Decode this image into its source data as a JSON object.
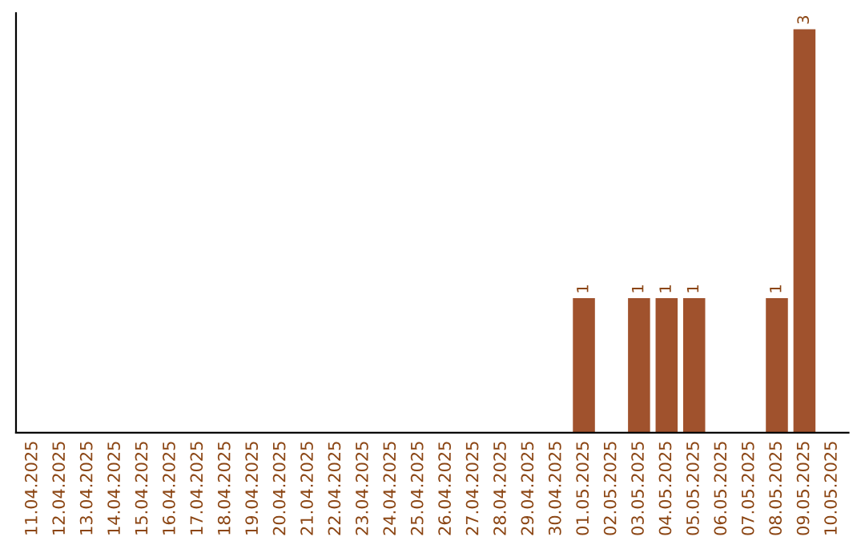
{
  "chart_data": {
    "type": "bar",
    "categories": [
      "11.04.2025",
      "12.04.2025",
      "13.04.2025",
      "14.04.2025",
      "15.04.2025",
      "16.04.2025",
      "17.04.2025",
      "18.04.2025",
      "19.04.2025",
      "20.04.2025",
      "21.04.2025",
      "22.04.2025",
      "23.04.2025",
      "24.04.2025",
      "25.04.2025",
      "26.04.2025",
      "27.04.2025",
      "28.04.2025",
      "29.04.2025",
      "30.04.2025",
      "01.05.2025",
      "02.05.2025",
      "03.05.2025",
      "04.05.2025",
      "05.05.2025",
      "06.05.2025",
      "07.05.2025",
      "08.05.2025",
      "09.05.2025",
      "10.05.2025"
    ],
    "values": [
      null,
      null,
      null,
      null,
      null,
      null,
      null,
      null,
      null,
      null,
      null,
      null,
      null,
      null,
      null,
      null,
      null,
      null,
      null,
      null,
      1,
      null,
      1,
      1,
      1,
      null,
      null,
      1,
      3,
      null
    ],
    "data_labels": true,
    "color": "#a0522d",
    "grid": false,
    "legend": false,
    "tick_labels": "x"
  }
}
